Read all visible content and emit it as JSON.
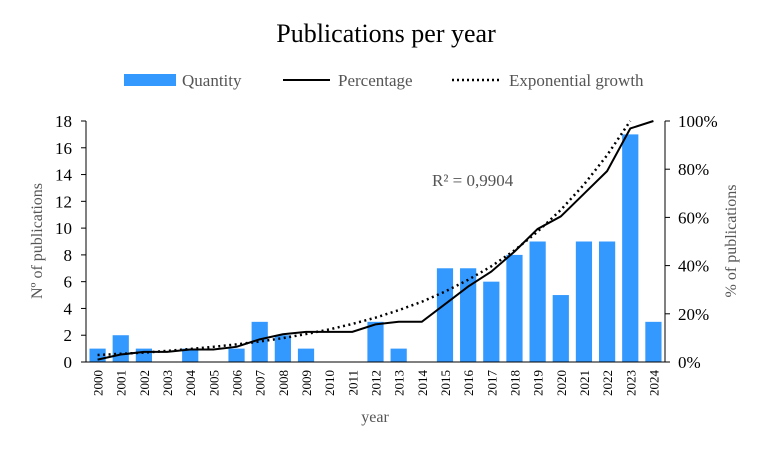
{
  "chart_data": {
    "type": "bar",
    "title": "Publications  per year",
    "xlabel": "year",
    "ylabel": "Nº of publications",
    "y2label": "% of publications",
    "ylim": [
      0,
      18
    ],
    "y2lim": [
      0,
      100
    ],
    "yticks": [
      0,
      2,
      4,
      6,
      8,
      10,
      12,
      14,
      16,
      18
    ],
    "y2ticks": [
      "0%",
      "20%",
      "40%",
      "60%",
      "80%",
      "100%"
    ],
    "grid": false,
    "legend_position": "top",
    "categories": [
      "2000",
      "2001",
      "2002",
      "2003",
      "2004",
      "2005",
      "2006",
      "2007",
      "2008",
      "2009",
      "2010",
      "2011",
      "2012",
      "2013",
      "2014",
      "2015",
      "2016",
      "2017",
      "2018",
      "2019",
      "2020",
      "2021",
      "2022",
      "2023",
      "2024"
    ],
    "series": [
      {
        "name": "Quantity",
        "type": "bar",
        "axis": "left",
        "color": "#3399ff",
        "values": [
          1,
          2,
          1,
          0,
          1,
          0,
          1,
          3,
          2,
          1,
          0,
          0,
          3,
          1,
          0,
          7,
          7,
          6,
          8,
          9,
          5,
          9,
          9,
          17,
          3
        ]
      },
      {
        "name": "Percentage",
        "type": "line",
        "axis": "right",
        "color": "#000000",
        "values": [
          1.0,
          3.1,
          4.2,
          4.2,
          5.2,
          5.2,
          6.3,
          9.4,
          11.5,
          12.5,
          12.5,
          12.5,
          15.6,
          16.7,
          16.7,
          24.0,
          31.3,
          37.5,
          45.8,
          55.2,
          60.4,
          69.8,
          79.2,
          96.9,
          100
        ]
      },
      {
        "name": "Exponential growth",
        "type": "line-dotted",
        "axis": "right",
        "color": "#000000",
        "values": [
          2.9,
          3.4,
          3.9,
          4.6,
          5.4,
          6.3,
          7.3,
          8.5,
          9.9,
          11.6,
          13.5,
          15.8,
          18.4,
          21.5,
          25.0,
          29.2,
          34.1,
          39.7,
          46.3,
          54.1,
          63.1,
          73.6,
          85.8,
          100.1,
          null
        ]
      }
    ],
    "annotations": [
      {
        "text": "R² = 0,9904"
      }
    ]
  }
}
